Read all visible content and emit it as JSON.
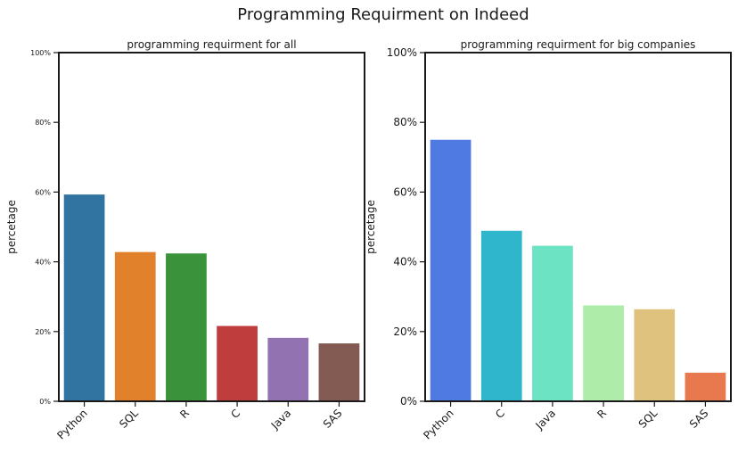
{
  "figure": {
    "title": "Programming Requirment on Indeed"
  },
  "chart_data": [
    {
      "type": "bar",
      "title": "programming requirment for all",
      "xlabel": "",
      "ylabel": "percetage",
      "ylim": [
        0,
        100
      ],
      "yticks": [
        "0%",
        "20%",
        "40%",
        "60%",
        "80%",
        "100%"
      ],
      "grid": false,
      "categories": [
        "Python",
        "SQL",
        "R",
        "C",
        "Java",
        "SAS"
      ],
      "values": [
        59.3,
        42.8,
        42.4,
        21.6,
        18.2,
        16.6
      ],
      "colors": [
        "#3274a1",
        "#e1812c",
        "#3a923a",
        "#c03d3e",
        "#9372b2",
        "#845b53"
      ]
    },
    {
      "type": "bar",
      "title": "programming requirment for big companies",
      "xlabel": "",
      "ylabel": "percetage",
      "ylim": [
        0,
        100
      ],
      "yticks": [
        "0%",
        "20%",
        "40%",
        "60%",
        "80%",
        "100%"
      ],
      "grid": false,
      "categories": [
        "Python",
        "C",
        "Java",
        "R",
        "SQL",
        "SAS"
      ],
      "values": [
        75.0,
        48.9,
        44.6,
        27.5,
        26.4,
        8.2
      ],
      "colors": [
        "#4f7ae2",
        "#2fb5cc",
        "#6ce4c4",
        "#aeeca9",
        "#dfc27e",
        "#e8794f"
      ]
    }
  ]
}
